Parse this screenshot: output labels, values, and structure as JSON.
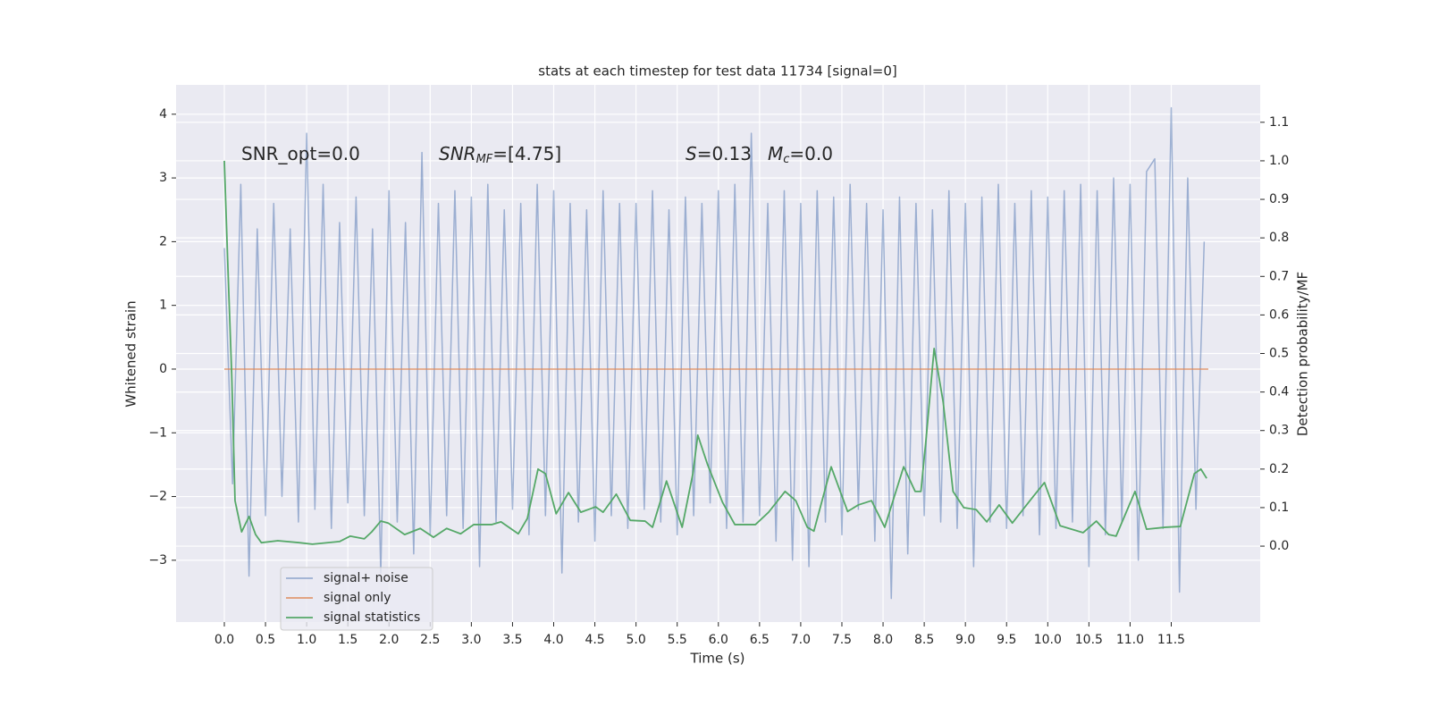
{
  "chart_data": {
    "type": "line",
    "title": "stats at each timestep for test data 11734 [signal=0]",
    "x_label": "Time (s)",
    "y_label": "Whitened strain",
    "y2_label": "Detection probability/MF",
    "annotations": [
      [
        "SNR_opt=0.0"
      ],
      [
        "SNR",
        "MF",
        "=[4.75]"
      ],
      [
        "S",
        "=0.13"
      ],
      [
        "M",
        "c",
        "=0.0"
      ]
    ],
    "xlim": [
      -0.586,
      12.58
    ],
    "ylim": [
      -3.97,
      4.46
    ],
    "y2lim": [
      -0.197,
      1.197
    ],
    "xticks": [
      {
        "value": 0,
        "label": "0.0"
      },
      0.5,
      {
        "value": 1,
        "label": "1.0"
      },
      1.5,
      {
        "value": 2,
        "label": "2.0"
      },
      2.5,
      {
        "value": 3,
        "label": "3.0"
      },
      3.5,
      {
        "value": 4,
        "label": "4.0"
      },
      4.5,
      {
        "value": 5,
        "label": "5.0"
      },
      5.5,
      {
        "value": 6,
        "label": "6.0"
      },
      6.5,
      {
        "value": 7,
        "label": "7.0"
      },
      7.5,
      {
        "value": 8,
        "label": "8.0"
      },
      8.5,
      {
        "value": 9,
        "label": "9.0"
      },
      9.5,
      {
        "value": 10,
        "label": "10.0"
      },
      10.5,
      {
        "value": 11,
        "label": "11.0"
      },
      11.5
    ],
    "yticks": [
      {
        "value": -3,
        "label": "−3"
      },
      {
        "value": -2,
        "label": "−2"
      },
      {
        "value": -1,
        "label": "−1"
      },
      0,
      1,
      2,
      3,
      4
    ],
    "y2ticks": [
      {
        "value": 0,
        "label": "0.0"
      },
      0.1,
      0.2,
      0.3,
      0.4,
      0.5,
      0.6,
      0.7,
      0.8,
      0.9,
      {
        "value": 1,
        "label": "1.0"
      },
      1.1
    ],
    "grid": true,
    "legend": "lower left",
    "series": [
      {
        "name": "signal+ noise",
        "color": "#4c72b0",
        "x": [
          0.0,
          0.1,
          0.2,
          0.3,
          0.4,
          0.5,
          0.6,
          0.7,
          0.8,
          0.9,
          1.0,
          1.1,
          1.2,
          1.3,
          1.4,
          1.5,
          1.6,
          1.7,
          1.8,
          1.9,
          2.0,
          2.1,
          2.2,
          2.3,
          2.4,
          2.5,
          2.6,
          2.7,
          2.8,
          2.9,
          3.0,
          3.1,
          3.2,
          3.3,
          3.4,
          3.5,
          3.6,
          3.7,
          3.8,
          3.9,
          4.0,
          4.1,
          4.2,
          4.3,
          4.4,
          4.5,
          4.6,
          4.7,
          4.8,
          4.9,
          5.0,
          5.1,
          5.2,
          5.3,
          5.4,
          5.5,
          5.6,
          5.7,
          5.8,
          5.9,
          6.0,
          6.1,
          6.2,
          6.3,
          6.4,
          6.5,
          6.6,
          6.7,
          6.8,
          6.9,
          7.0,
          7.1,
          7.2,
          7.3,
          7.4,
          7.5,
          7.6,
          7.7,
          7.8,
          7.9,
          8.0,
          8.1,
          8.2,
          8.3,
          8.4,
          8.5,
          8.6,
          8.7,
          8.8,
          8.9,
          9.0,
          9.1,
          9.2,
          9.3,
          9.4,
          9.5,
          9.6,
          9.7,
          9.8,
          9.9,
          10.0,
          10.1,
          10.2,
          10.3,
          10.4,
          10.5,
          10.6,
          10.7,
          10.8,
          10.9,
          11.0,
          11.1,
          11.2,
          11.3,
          11.4,
          11.5,
          11.6,
          11.7,
          11.8,
          11.9
        ],
        "values": [
          1.9,
          -1.8,
          2.9,
          -3.25,
          2.2,
          -2.3,
          2.6,
          -2.0,
          2.2,
          -2.4,
          3.7,
          -2.2,
          2.9,
          -2.5,
          2.3,
          -2.1,
          2.7,
          -2.3,
          2.2,
          -3.2,
          2.8,
          -2.4,
          2.3,
          -2.9,
          3.4,
          -2.6,
          2.6,
          -2.3,
          2.8,
          -2.5,
          2.7,
          -3.1,
          2.9,
          -2.4,
          2.5,
          -2.2,
          2.6,
          -2.6,
          2.9,
          -2.3,
          2.8,
          -3.2,
          2.6,
          -2.4,
          2.5,
          -2.7,
          2.8,
          -2.3,
          2.6,
          -2.5,
          2.6,
          -2.2,
          2.8,
          -2.4,
          2.5,
          -2.6,
          2.7,
          -2.3,
          2.6,
          -2.1,
          2.8,
          -2.5,
          2.9,
          -2.4,
          3.7,
          -2.3,
          2.6,
          -2.7,
          2.8,
          -3.0,
          2.6,
          -3.1,
          2.8,
          -2.4,
          2.7,
          -2.6,
          2.9,
          -2.2,
          2.6,
          -2.7,
          2.5,
          -3.6,
          2.7,
          -2.9,
          2.6,
          -2.3,
          2.5,
          -2.4,
          2.8,
          -2.5,
          2.6,
          -3.1,
          2.7,
          -2.4,
          2.9,
          -2.5,
          2.6,
          -2.3,
          2.8,
          -2.6,
          2.7,
          -2.5,
          2.8,
          -2.4,
          2.9,
          -3.1,
          2.8,
          -2.6,
          3.0,
          -2.4,
          2.9,
          -3.0,
          3.1,
          3.3,
          -2.5,
          4.1,
          -3.5,
          3.0,
          -2.2,
          2.0
        ]
      },
      {
        "name": "signal only",
        "color": "#dd8452",
        "x": [
          0.0,
          11.95
        ],
        "values": [
          0,
          0
        ]
      },
      {
        "name": "signal statistics",
        "color": "#55a868",
        "axis": "y2",
        "x": [
          0.0,
          0.04,
          0.09,
          0.13,
          0.21,
          0.3,
          0.38,
          0.45,
          0.65,
          0.91,
          1.07,
          1.4,
          1.53,
          1.7,
          1.79,
          1.9,
          1.99,
          2.19,
          2.38,
          2.54,
          2.7,
          2.87,
          3.03,
          3.25,
          3.36,
          3.57,
          3.68,
          3.81,
          3.9,
          4.03,
          4.18,
          4.33,
          4.51,
          4.6,
          4.76,
          4.93,
          5.11,
          5.2,
          5.37,
          5.56,
          5.69,
          5.75,
          5.87,
          6.05,
          6.2,
          6.45,
          6.61,
          6.81,
          6.94,
          7.08,
          7.16,
          7.37,
          7.57,
          7.7,
          7.86,
          8.02,
          8.25,
          8.39,
          8.46,
          8.53,
          8.62,
          8.73,
          8.85,
          8.98,
          9.13,
          9.26,
          9.41,
          9.57,
          9.82,
          9.96,
          10.15,
          10.43,
          10.59,
          10.74,
          10.83,
          11.06,
          11.2,
          11.43,
          11.61,
          11.78,
          11.86,
          11.93
        ],
        "values": [
          1.0,
          0.745,
          0.443,
          0.118,
          0.037,
          0.077,
          0.03,
          0.009,
          0.014,
          0.009,
          0.005,
          0.012,
          0.026,
          0.019,
          0.037,
          0.065,
          0.06,
          0.03,
          0.046,
          0.023,
          0.046,
          0.032,
          0.056,
          0.056,
          0.063,
          0.032,
          0.072,
          0.2,
          0.188,
          0.084,
          0.139,
          0.088,
          0.102,
          0.088,
          0.135,
          0.067,
          0.065,
          0.049,
          0.169,
          0.049,
          0.188,
          0.288,
          0.211,
          0.114,
          0.056,
          0.056,
          0.088,
          0.142,
          0.118,
          0.049,
          0.039,
          0.206,
          0.09,
          0.107,
          0.118,
          0.049,
          0.206,
          0.142,
          0.142,
          0.295,
          0.513,
          0.374,
          0.142,
          0.1,
          0.095,
          0.063,
          0.107,
          0.06,
          0.128,
          0.165,
          0.053,
          0.035,
          0.065,
          0.03,
          0.026,
          0.142,
          0.044,
          0.049,
          0.051,
          0.188,
          0.2,
          0.176
        ]
      }
    ]
  }
}
